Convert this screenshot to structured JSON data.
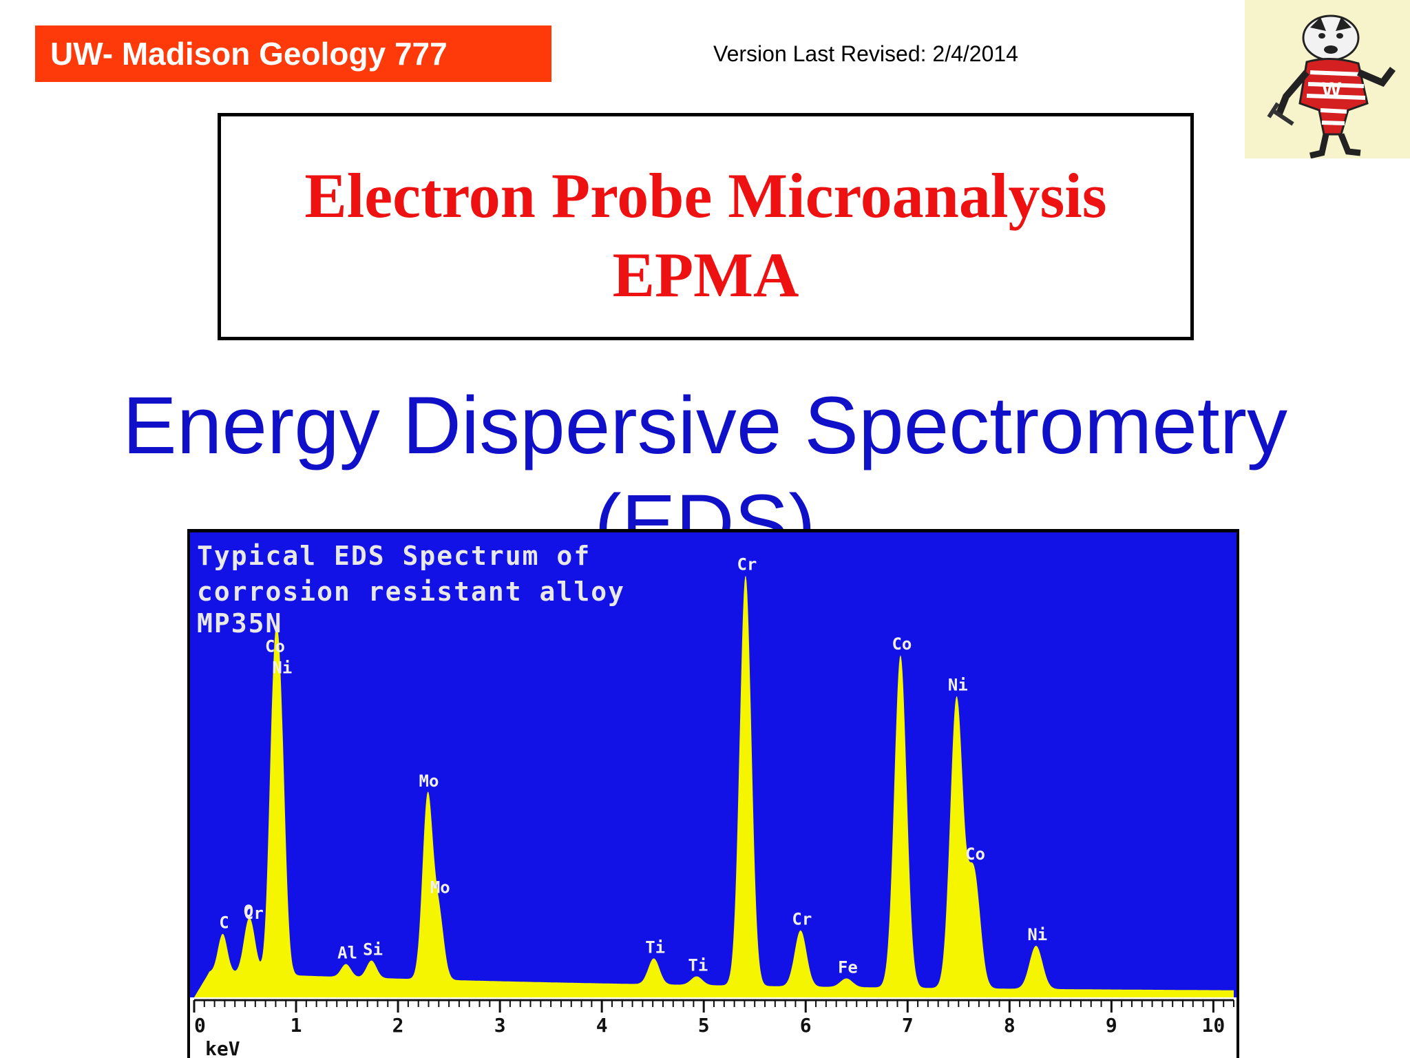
{
  "header": {
    "course": "UW- Madison Geology  777",
    "version": "Version Last Revised:  2/4/2014",
    "logo_icon": "badger-mascot-icon"
  },
  "title_box": {
    "line1": "Electron Probe Microanalysis",
    "line2": "EPMA"
  },
  "subtitle": {
    "line1": "Energy Dispersive Spectrometry",
    "line2": "(EDS)"
  },
  "colors": {
    "course_tag_bg": "#ff3a0a",
    "title_red": "#ee1111",
    "subtitle_blue": "#1010c8",
    "spectrum_bg": "#1212e6",
    "spectrum_fill": "#f5f500"
  },
  "chart_data": {
    "type": "area",
    "title_lines": [
      "Typical EDS Spectrum of",
      "corrosion resistant alloy",
      "MP35N"
    ],
    "xlabel": "keV",
    "xlim": [
      0,
      10.2
    ],
    "ylim": [
      0,
      100
    ],
    "x_ticks": [
      0,
      1,
      2,
      3,
      4,
      5,
      6,
      7,
      8,
      9,
      10
    ],
    "x_tick_labels": [
      "0",
      "1",
      "2",
      "3",
      "4",
      "5",
      "6",
      "7",
      "8",
      "9",
      "10"
    ],
    "background_level": 5,
    "peaks": [
      {
        "element": "C",
        "x": 0.28,
        "y": 9
      },
      {
        "element": "O",
        "x": 0.52,
        "y": 8
      },
      {
        "element": "Cr",
        "x": 0.57,
        "y": 7
      },
      {
        "element": "Co",
        "x": 0.78,
        "y": 57
      },
      {
        "element": "Ni",
        "x": 0.85,
        "y": 50
      },
      {
        "element": "Al",
        "x": 1.49,
        "y": 3
      },
      {
        "element": "Si",
        "x": 1.74,
        "y": 4
      },
      {
        "element": "Mo",
        "x": 2.29,
        "y": 42
      },
      {
        "element": "Mo",
        "x": 2.4,
        "y": 15
      },
      {
        "element": "Ti",
        "x": 4.51,
        "y": 6
      },
      {
        "element": "Ti",
        "x": 4.93,
        "y": 2
      },
      {
        "element": "Cr",
        "x": 5.41,
        "y": 95
      },
      {
        "element": "Cr",
        "x": 5.95,
        "y": 13
      },
      {
        "element": "Fe",
        "x": 6.4,
        "y": 2
      },
      {
        "element": "Co",
        "x": 6.93,
        "y": 77
      },
      {
        "element": "Ni",
        "x": 7.48,
        "y": 67
      },
      {
        "element": "Co",
        "x": 7.65,
        "y": 27
      },
      {
        "element": "Ni",
        "x": 8.26,
        "y": 10
      }
    ]
  }
}
